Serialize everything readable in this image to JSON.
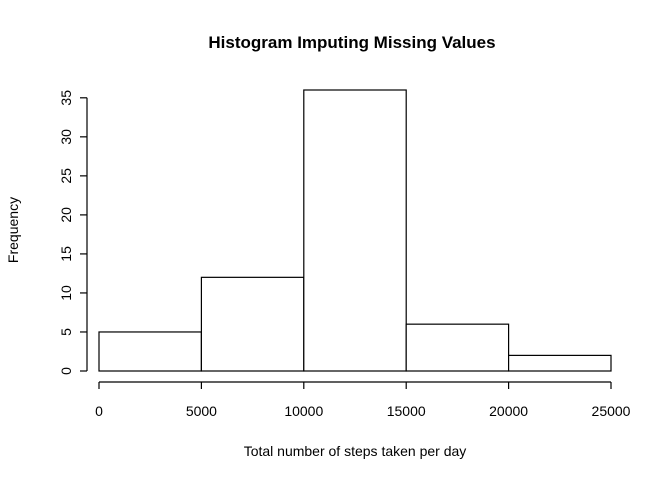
{
  "chart_data": {
    "type": "histogram",
    "title": "Histogram Imputing Missing Values",
    "xlabel": "Total number of steps taken per day",
    "ylabel": "Frequency",
    "bins": [
      {
        "start": 0,
        "end": 5000,
        "count": 5
      },
      {
        "start": 5000,
        "end": 10000,
        "count": 12
      },
      {
        "start": 10000,
        "end": 15000,
        "count": 36
      },
      {
        "start": 15000,
        "end": 20000,
        "count": 6
      },
      {
        "start": 20000,
        "end": 25000,
        "count": 2
      }
    ],
    "xlim": [
      0,
      25000
    ],
    "ylim": [
      0,
      36
    ],
    "x_ticks": [
      0,
      5000,
      10000,
      15000,
      20000,
      25000
    ],
    "y_ticks": [
      0,
      5,
      10,
      15,
      20,
      25,
      30,
      35
    ],
    "bar_fill": "#ffffff",
    "bar_stroke": "#000000",
    "grid": false,
    "legend": "none"
  }
}
